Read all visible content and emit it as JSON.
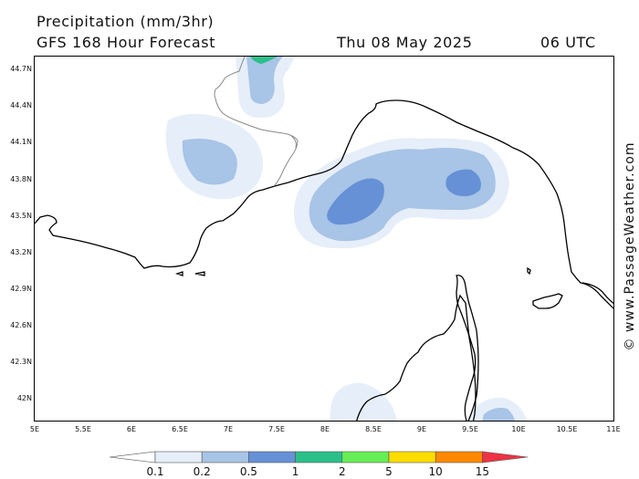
{
  "header": {
    "title": "Precipitation (mm/3hr)",
    "subtitle": "GFS 168 Hour Forecast",
    "date": "Thu 08 May 2025",
    "time": "06 UTC"
  },
  "credit": "© www.PassageWeather.com",
  "axes": {
    "lat_labels": [
      "44.7N",
      "44.4N",
      "44.1N",
      "43.8N",
      "43.5N",
      "43.2N",
      "42.9N",
      "42.6N",
      "42.3N",
      "42N"
    ],
    "lon_labels": [
      "5E",
      "5.5E",
      "6E",
      "6.5E",
      "7E",
      "7.5E",
      "8E",
      "8.5E",
      "9E",
      "9.5E",
      "10E",
      "10.5E",
      "11E"
    ]
  },
  "legend": {
    "labels": [
      "0.1",
      "0.2",
      "0.5",
      "1",
      "2",
      "5",
      "10",
      "15"
    ],
    "colors": [
      "#ffffff",
      "#e6eef9",
      "#a8c4e6",
      "#6691d6",
      "#2bbf8a",
      "#66ee55",
      "#ffdd00",
      "#ff8800",
      "#ee3344"
    ]
  },
  "colors": {
    "coast": "#000000",
    "border": "#888888",
    "frame": "#000000"
  }
}
